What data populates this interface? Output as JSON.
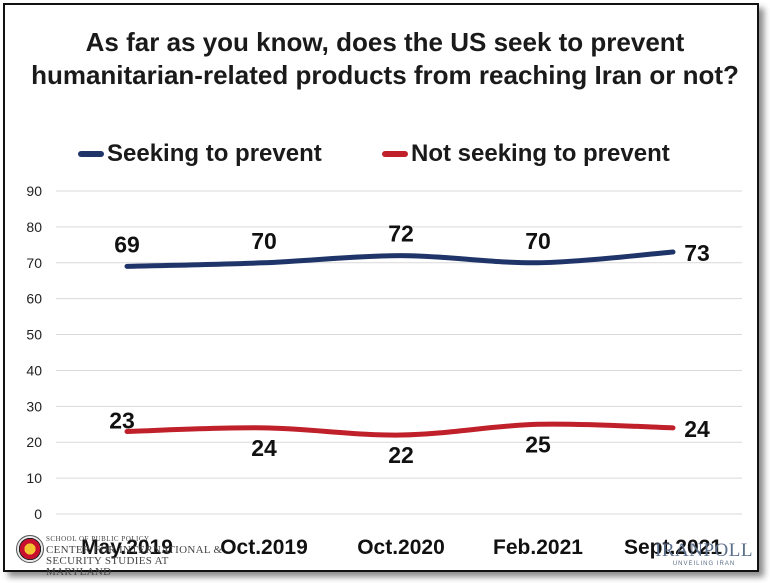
{
  "chart_data": {
    "type": "line",
    "title": "As far as you know, does the US seek to prevent humanitarian-related products from reaching Iran or not?",
    "title_lines": [
      "As far as you know, does the US seek to prevent",
      "humanitarian-related products from reaching Iran or not?"
    ],
    "categories": [
      "May.2019",
      "Oct.2019",
      "Oct.2020",
      "Feb.2021",
      "Sept.2021"
    ],
    "series": [
      {
        "name": "Seeking to prevent",
        "color": "#1f3468",
        "values": [
          69,
          70,
          72,
          70,
          73
        ]
      },
      {
        "name": "Not seeking to prevent",
        "color": "#c0202a",
        "values": [
          23,
          24,
          22,
          25,
          24
        ]
      }
    ],
    "ylim": [
      0,
      90
    ],
    "yticks": [
      0,
      10,
      20,
      30,
      40,
      50,
      60,
      70,
      80,
      90
    ],
    "grid": true,
    "legend": "top",
    "xlabel": "",
    "ylabel": ""
  },
  "logos": {
    "left_line1": "SCHOOL OF PUBLIC POLICY",
    "left_line2": "CENTER FOR INTERNATIONAL &",
    "left_line3": "SECURITY STUDIES AT MARYLAND",
    "right_name": "IRANPOLL",
    "right_tagline": "UNVEILING IRAN"
  }
}
